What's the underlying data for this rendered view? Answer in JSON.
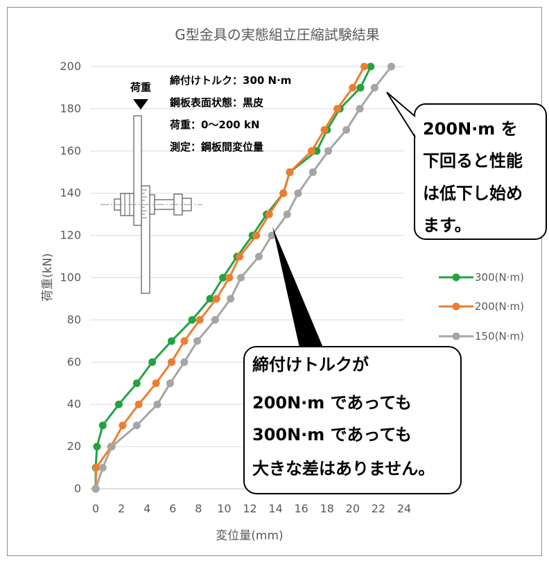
{
  "chart_data": {
    "type": "line",
    "title": "G型金具の実態組立圧縮試験結果",
    "xlabel": "変位量(mm)",
    "ylabel": "荷重(kN)",
    "xlim": [
      0,
      24
    ],
    "ylim": [
      0,
      200
    ],
    "xticks": [
      0,
      2,
      4,
      6,
      8,
      10,
      12,
      14,
      16,
      18,
      20,
      22,
      24
    ],
    "yticks": [
      0,
      20,
      40,
      60,
      80,
      100,
      120,
      140,
      160,
      180,
      200
    ],
    "grid": "horizontal",
    "legend": "right",
    "series": [
      {
        "name": "300(N·m)",
        "color": "#23a33f",
        "points": [
          [
            0,
            0
          ],
          [
            0,
            10
          ],
          [
            0.1,
            20
          ],
          [
            0.55,
            30
          ],
          [
            1.8,
            40
          ],
          [
            3.2,
            50
          ],
          [
            4.4,
            60
          ],
          [
            5.9,
            70
          ],
          [
            7.5,
            80
          ],
          [
            8.9,
            90
          ],
          [
            9.9,
            100
          ],
          [
            11.0,
            110
          ],
          [
            12.2,
            120
          ],
          [
            13.3,
            130
          ],
          [
            14.6,
            140
          ],
          [
            15.1,
            150
          ],
          [
            17.2,
            160
          ],
          [
            18.0,
            170
          ],
          [
            19.0,
            180
          ],
          [
            20.6,
            190
          ],
          [
            21.4,
            200
          ]
        ]
      },
      {
        "name": "200(N·m)",
        "color": "#ed7d31",
        "points": [
          [
            0,
            0
          ],
          [
            0.05,
            10
          ],
          [
            1.2,
            20
          ],
          [
            2.1,
            30
          ],
          [
            3.35,
            40
          ],
          [
            4.7,
            50
          ],
          [
            5.9,
            60
          ],
          [
            6.9,
            70
          ],
          [
            8.1,
            80
          ],
          [
            9.4,
            90
          ],
          [
            10.4,
            100
          ],
          [
            11.2,
            110
          ],
          [
            12.5,
            120
          ],
          [
            13.5,
            130
          ],
          [
            14.6,
            140
          ],
          [
            15.1,
            150
          ],
          [
            16.8,
            160
          ],
          [
            17.8,
            170
          ],
          [
            18.8,
            180
          ],
          [
            20.0,
            190
          ],
          [
            20.9,
            200
          ]
        ]
      },
      {
        "name": "150(N·m)",
        "color": "#a5a5a5",
        "points": [
          [
            0,
            0
          ],
          [
            0.55,
            10
          ],
          [
            1.25,
            20
          ],
          [
            3.2,
            30
          ],
          [
            4.8,
            40
          ],
          [
            5.8,
            50
          ],
          [
            6.9,
            60
          ],
          [
            7.9,
            70
          ],
          [
            9.3,
            80
          ],
          [
            10.5,
            90
          ],
          [
            11.3,
            100
          ],
          [
            12.7,
            110
          ],
          [
            13.7,
            120
          ],
          [
            14.9,
            130
          ],
          [
            15.75,
            140
          ],
          [
            16.9,
            150
          ],
          [
            18.1,
            160
          ],
          [
            19.5,
            170
          ],
          [
            20.55,
            180
          ],
          [
            21.7,
            190
          ],
          [
            23.0,
            200
          ]
        ]
      }
    ],
    "annotations": {
      "diagram_label": "荷重",
      "conditions": [
        "締付けトルク：300 N·m",
        "鋼板表面状態：黒皮",
        "荷重：0～200 kN",
        "測定：鋼板間変位量"
      ],
      "callout_right": [
        "200N·m を",
        "下回ると性能",
        "は低下し始め",
        "ます。"
      ],
      "callout_bottom": [
        "締付けトルクが",
        "200N·m であっても",
        "300N·m であっても",
        "大きな差はありません。"
      ]
    }
  }
}
